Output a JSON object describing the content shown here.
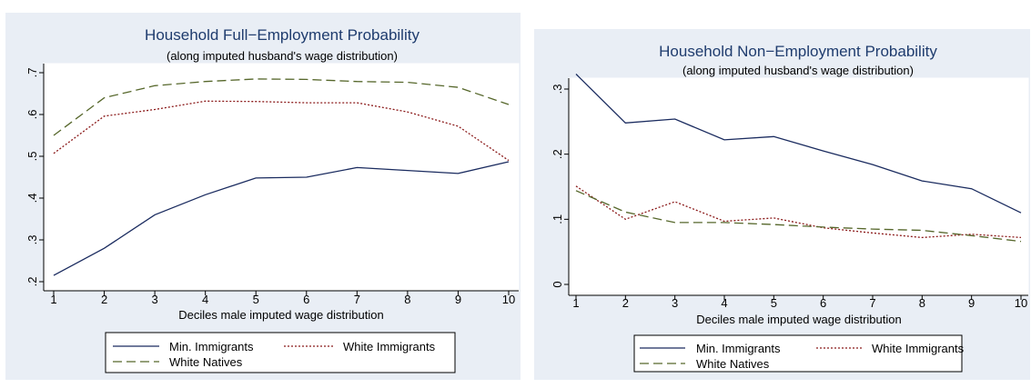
{
  "series_style": {
    "min_imm": {
      "color": "#1a2b5f",
      "dash": ""
    },
    "white_imm": {
      "color": "#8b1a1a",
      "dash": "2,2"
    },
    "natives": {
      "color": "#56672b",
      "dash": "10,5"
    }
  },
  "chart_data": [
    {
      "type": "line",
      "title": "Household Full−Employment Probability",
      "subtitle": "(along imputed husband's wage distribution)",
      "xlabel": "Deciles male imputed wage distribution",
      "ylabel": "",
      "x": [
        1,
        2,
        3,
        4,
        5,
        6,
        7,
        8,
        9,
        10
      ],
      "xticks": [
        "1",
        "2",
        "3",
        "4",
        "5",
        "6",
        "7",
        "8",
        "9",
        "10"
      ],
      "ylim": [
        0.2,
        0.7
      ],
      "yticks": [
        0.2,
        0.3,
        0.4,
        0.5,
        0.6,
        0.7
      ],
      "ytick_labels": [
        ".2",
        ".3",
        ".4",
        ".5",
        ".6",
        ".7"
      ],
      "grid": false,
      "legend_position": "bottom",
      "series": [
        {
          "key": "min_imm",
          "name": "Min. Immigrants",
          "values": [
            0.215,
            0.28,
            0.36,
            0.408,
            0.448,
            0.45,
            0.473,
            0.466,
            0.459,
            0.487
          ]
        },
        {
          "key": "white_imm",
          "name": "White Immigrants",
          "values": [
            0.507,
            0.596,
            0.612,
            0.632,
            0.631,
            0.628,
            0.628,
            0.606,
            0.572,
            0.49
          ]
        },
        {
          "key": "natives",
          "name": "White Natives",
          "values": [
            0.55,
            0.64,
            0.669,
            0.679,
            0.685,
            0.684,
            0.679,
            0.677,
            0.665,
            0.624
          ]
        }
      ]
    },
    {
      "type": "line",
      "title": "Household Non−Employment Probability",
      "subtitle": "(along imputed husband's wage distribution)",
      "xlabel": "Deciles male imputed wage distribution",
      "ylabel": "",
      "x": [
        1,
        2,
        3,
        4,
        5,
        6,
        7,
        8,
        9,
        10
      ],
      "xticks": [
        "1",
        "2",
        "3",
        "4",
        "5",
        "6",
        "7",
        "8",
        "9",
        "10"
      ],
      "ylim": [
        0,
        0.3
      ],
      "yticks": [
        0,
        0.1,
        0.2,
        0.3
      ],
      "ytick_labels": [
        "0",
        ".1",
        ".2",
        ".3"
      ],
      "grid": false,
      "legend_position": "bottom",
      "series": [
        {
          "key": "min_imm",
          "name": "Min. Immigrants",
          "values": [
            0.323,
            0.248,
            0.254,
            0.222,
            0.227,
            0.205,
            0.184,
            0.159,
            0.147,
            0.11
          ]
        },
        {
          "key": "white_imm",
          "name": "White Immigrants",
          "values": [
            0.151,
            0.1,
            0.127,
            0.097,
            0.102,
            0.087,
            0.079,
            0.072,
            0.077,
            0.072
          ]
        },
        {
          "key": "natives",
          "name": "White Natives",
          "values": [
            0.144,
            0.111,
            0.095,
            0.095,
            0.092,
            0.088,
            0.085,
            0.083,
            0.075,
            0.066
          ]
        }
      ]
    }
  ]
}
